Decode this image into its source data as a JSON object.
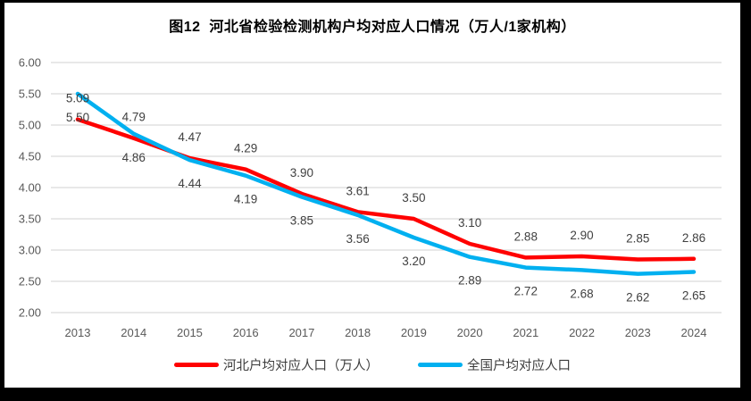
{
  "chart_data": {
    "type": "line",
    "title": "图12  河北省检验检测机构户均对应人口情况（万人/1家机构）",
    "categories": [
      "2013",
      "2014",
      "2015",
      "2016",
      "2017",
      "2018",
      "2019",
      "2020",
      "2021",
      "2022",
      "2023",
      "2024"
    ],
    "series": [
      {
        "name": "河北户均对应人口（万人）",
        "color": "#FF0000",
        "values": [
          5.09,
          4.79,
          4.47,
          4.29,
          3.9,
          3.61,
          3.5,
          3.1,
          2.88,
          2.9,
          2.85,
          2.86
        ],
        "data_label_position": "above"
      },
      {
        "name": "全国户均对应人口",
        "color": "#00B0F0",
        "values": [
          5.5,
          4.86,
          4.44,
          4.19,
          3.85,
          3.56,
          3.2,
          2.89,
          2.72,
          2.68,
          2.62,
          2.65
        ],
        "data_label_position": "below"
      }
    ],
    "ylim": [
      2.0,
      6.0
    ],
    "ytick_step": 0.5,
    "ytick_label_format": "0.00",
    "data_labels": true,
    "data_label_format": "0.00",
    "grid": true,
    "legend_position": "bottom",
    "colors": {
      "gridline": "#D9D9D9",
      "axis_text": "#595959",
      "data_label_text": "#404040",
      "title_text": "#000000",
      "plot_background": "#FFFFFF",
      "frame_border": "#000000"
    }
  }
}
